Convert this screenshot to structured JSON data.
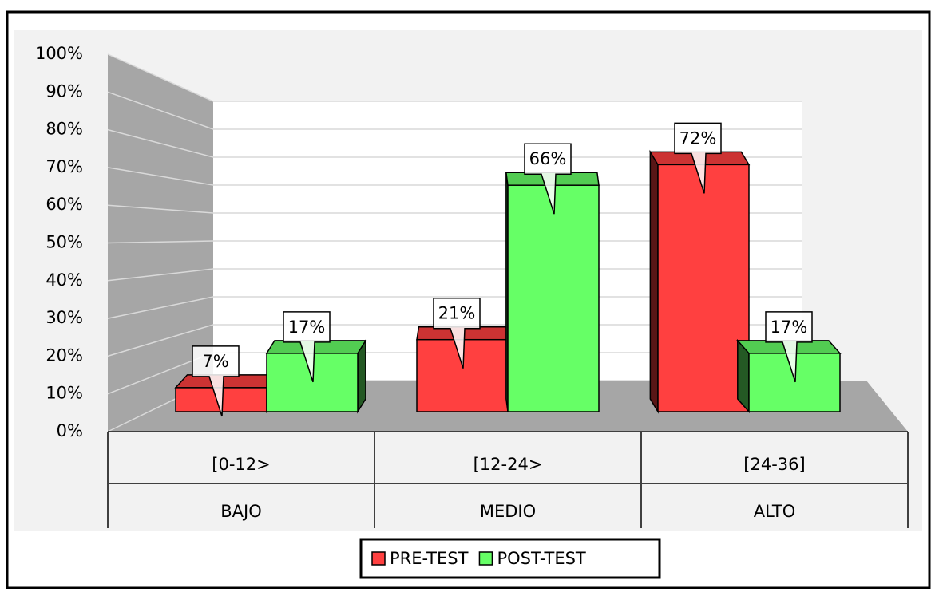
{
  "chart_data": {
    "type": "bar3d",
    "categories": [
      "[0-12>",
      "[12-24>",
      "[24-36]"
    ],
    "category_groups": [
      "BAJO",
      "MEDIO",
      "ALTO"
    ],
    "series": [
      {
        "name": "PRE-TEST",
        "color": "#ff4040",
        "values": [
          7,
          21,
          72
        ],
        "value_labels": [
          "7%",
          "21%",
          "72%"
        ]
      },
      {
        "name": "POST-TEST",
        "color": "#66ff66",
        "values": [
          17,
          66,
          17
        ],
        "value_labels": [
          "17%",
          "66%",
          "17%"
        ]
      }
    ],
    "ylim": [
      0,
      100
    ],
    "yticks": [
      {
        "value": 0,
        "label": "0%"
      },
      {
        "value": 10,
        "label": "10%"
      },
      {
        "value": 20,
        "label": "20%"
      },
      {
        "value": 30,
        "label": "30%"
      },
      {
        "value": 40,
        "label": "40%"
      },
      {
        "value": 50,
        "label": "50%"
      },
      {
        "value": 60,
        "label": "60%"
      },
      {
        "value": 70,
        "label": "70%"
      },
      {
        "value": 80,
        "label": "80%"
      },
      {
        "value": 90,
        "label": "90%"
      },
      {
        "value": 100,
        "label": "100%"
      }
    ],
    "grid": true,
    "legend": "bottom"
  }
}
